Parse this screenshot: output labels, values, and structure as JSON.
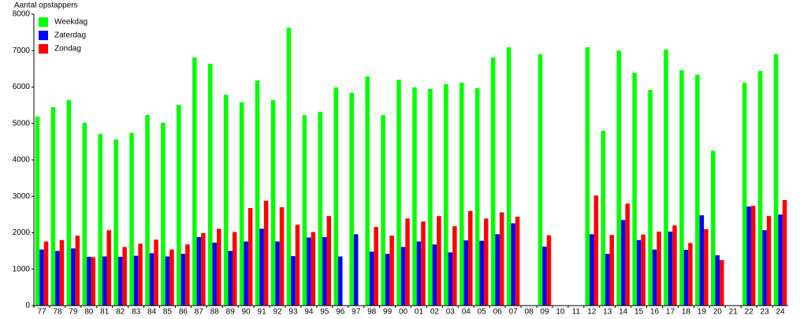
{
  "chart_data": {
    "type": "bar",
    "title": "Aantal opstappers",
    "categories": [
      "77",
      "78",
      "79",
      "80",
      "81",
      "82",
      "83",
      "84",
      "85",
      "86",
      "87",
      "88",
      "89",
      "90",
      "91",
      "92",
      "93",
      "94",
      "95",
      "96",
      "97",
      "98",
      "99",
      "00",
      "01",
      "02",
      "03",
      "04",
      "05",
      "06",
      "07",
      "08",
      "09",
      "10",
      "11",
      "12",
      "13",
      "14",
      "15",
      "16",
      "17",
      "18",
      "19",
      "20",
      "21",
      "22",
      "23",
      "24"
    ],
    "series": [
      {
        "name": "Weekdag",
        "color": "#00ff00",
        "values": [
          5190,
          5450,
          5640,
          5020,
          4710,
          4560,
          4740,
          5230,
          5020,
          5510,
          6810,
          6640,
          5790,
          5580,
          6180,
          5640,
          7630,
          5230,
          5320,
          5990,
          5840,
          6290,
          5230,
          6200,
          5990,
          5950,
          6080,
          6120,
          5970,
          6810,
          7090,
          null,
          6900,
          null,
          null,
          7090,
          4800,
          7000,
          6390,
          5920,
          7030,
          6460,
          6340,
          4250,
          null,
          6120,
          6440,
          6900
        ]
      },
      {
        "name": "Zaterdag",
        "color": "#0000ff",
        "values": [
          1540,
          1500,
          1570,
          1340,
          1350,
          1340,
          1370,
          1440,
          1350,
          1420,
          1880,
          1730,
          1500,
          1760,
          2110,
          1760,
          1360,
          1870,
          1880,
          1350,
          1960,
          1480,
          1420,
          1610,
          1760,
          1680,
          1460,
          1790,
          1780,
          1960,
          2260,
          null,
          1620,
          null,
          null,
          1960,
          1420,
          2350,
          1800,
          1540,
          2030,
          1530,
          2480,
          1380,
          null,
          2720,
          2070,
          2500
        ]
      },
      {
        "name": "Zondag",
        "color": "#ff0000",
        "values": [
          1760,
          1800,
          1920,
          1330,
          2070,
          1610,
          1700,
          1810,
          1540,
          1680,
          1990,
          2110,
          2020,
          2680,
          2880,
          2700,
          2220,
          2020,
          2460,
          null,
          null,
          2160,
          1920,
          2390,
          2310,
          2460,
          2180,
          2600,
          2390,
          2560,
          2440,
          null,
          1930,
          null,
          null,
          3020,
          1940,
          2800,
          1950,
          2030,
          2200,
          1720,
          2100,
          1250,
          null,
          2740,
          2460,
          2900
        ]
      }
    ],
    "ylim": [
      0,
      8000
    ],
    "yticks": [
      0,
      1000,
      2000,
      3000,
      4000,
      5000,
      6000,
      7000,
      8000
    ],
    "grid": false,
    "legend": "top-left"
  }
}
